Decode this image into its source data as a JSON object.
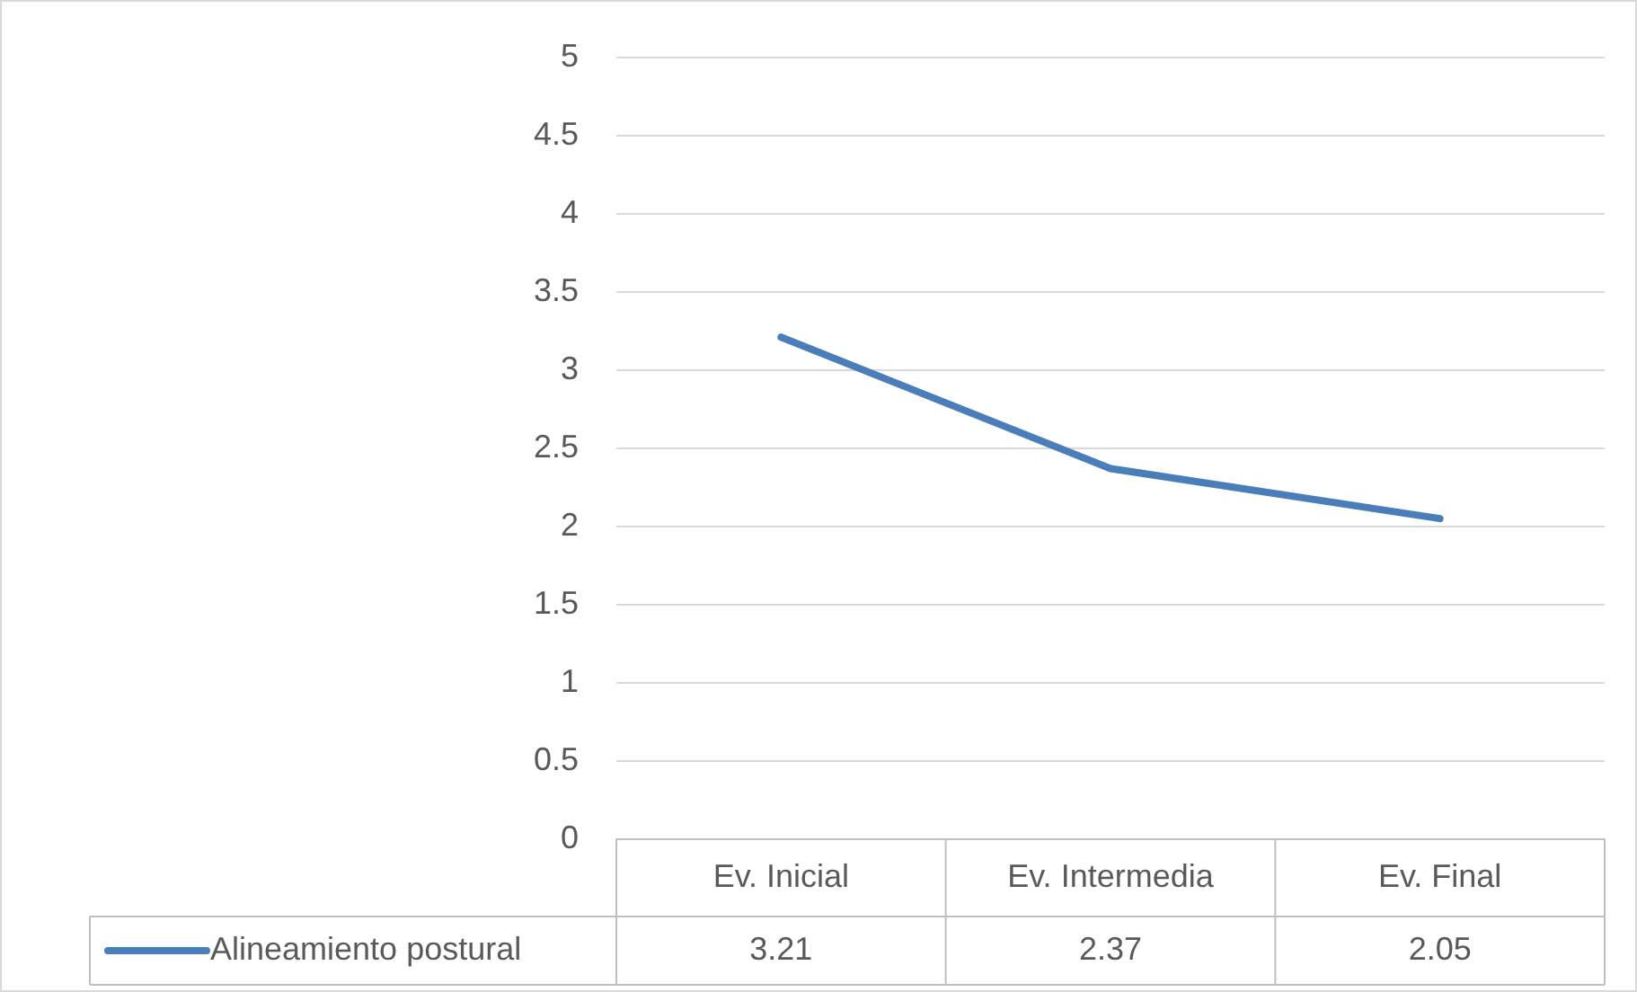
{
  "chart_data": {
    "type": "line",
    "categories": [
      "Ev. Inicial",
      "Ev. Intermedia",
      "Ev. Final"
    ],
    "series": [
      {
        "name": "Alineamiento postural",
        "color": "#4a7ebb",
        "values": [
          3.21,
          2.37,
          2.05
        ]
      }
    ],
    "ylim": [
      0,
      5
    ],
    "yticks": [
      0,
      0.5,
      1,
      1.5,
      2,
      2.5,
      3,
      3.5,
      4,
      4.5,
      5
    ],
    "grid": "y",
    "legend": "bottom",
    "data_labels": true
  }
}
